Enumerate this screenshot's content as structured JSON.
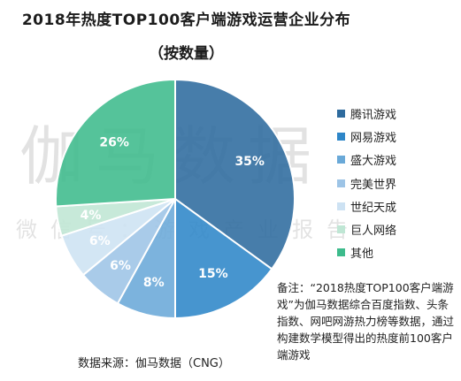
{
  "title": "2018年热度TOP100客户端游戏运营企业分布",
  "subtitle": "（按数量）",
  "watermark": {
    "large": "伽马数据",
    "small": "微信号：游戏产业报告"
  },
  "chart_data": {
    "type": "pie",
    "slices": [
      {
        "label": "腾讯游戏",
        "value": 35,
        "display": "35%",
        "color": "#2e6b9e"
      },
      {
        "label": "网易游戏",
        "value": 15,
        "display": "15%",
        "color": "#2e86c8"
      },
      {
        "label": "盛大游戏",
        "value": 8,
        "display": "8%",
        "color": "#6aa9d8"
      },
      {
        "label": "完美世界",
        "value": 6,
        "display": "6%",
        "color": "#9dc4e6"
      },
      {
        "label": "世纪天成",
        "value": 6,
        "display": "6%",
        "color": "#cde2f3"
      },
      {
        "label": "巨人网络",
        "value": 4,
        "display": "4%",
        "color": "#bfe6d4"
      },
      {
        "label": "其他",
        "value": 26,
        "display": "26%",
        "color": "#3dbb8c"
      }
    ],
    "legend_position": "right"
  },
  "source": "数据来源：伽马数据（CNG）",
  "note": "备注：“2018热度TOP100客户端游戏”为伽马数据综合百度指数、头条指数、网吧网游热力榜等数据，通过构建数学模型得出的热度前100客户端游戏"
}
